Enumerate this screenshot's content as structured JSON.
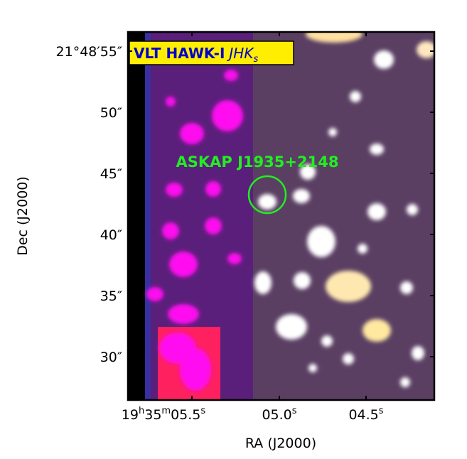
{
  "image": {
    "label": {
      "instrument": "VLT HAWK-I",
      "bands": "JHK",
      "band_subscript": "s"
    },
    "annotation": "ASKAP J1935+2148"
  },
  "axes": {
    "xlabel": "RA (J2000)",
    "ylabel": "Dec (J2000)",
    "xticks": [
      [
        "19",
        "h",
        "35",
        "m",
        "05.5",
        "s"
      ],
      [
        "05.0",
        "s"
      ],
      [
        "04.5",
        "s"
      ]
    ],
    "yticks": [
      "21°48′55″",
      "50″",
      "45″",
      "40″",
      "35″",
      "30″"
    ]
  }
}
